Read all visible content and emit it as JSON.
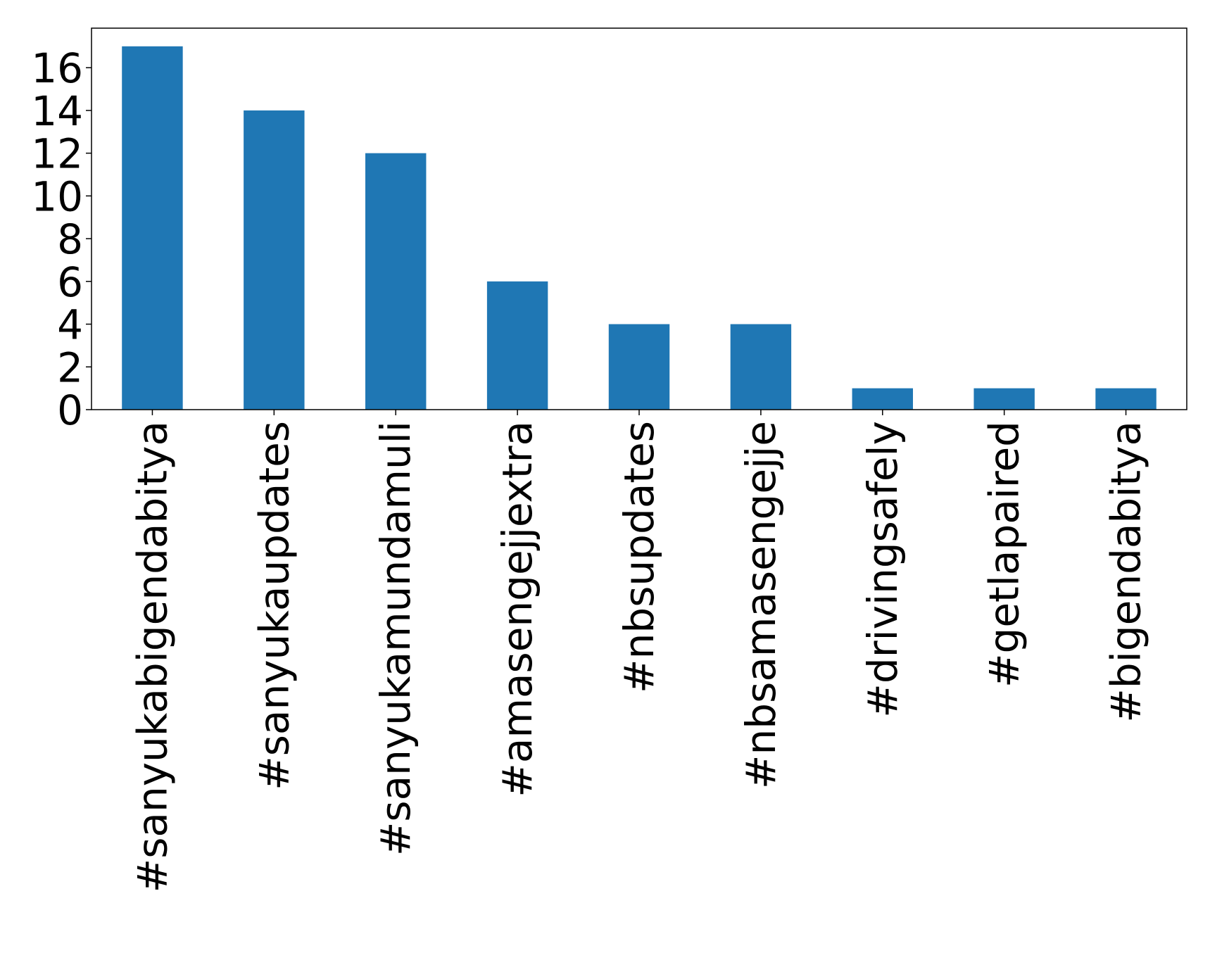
{
  "chart_data": {
    "type": "bar",
    "title": "",
    "xlabel": "",
    "ylabel": "",
    "categories": [
      "#sanyukabigendabitya",
      "#sanyukaupdates",
      "#sanyukamundamuli",
      "#amasengejjextra",
      "#nbsupdates",
      "#nbsamasengejje",
      "#drivingsafely",
      "#getlapaired",
      "#bigendabitya"
    ],
    "values": [
      17,
      14,
      12,
      6,
      4,
      4,
      1,
      1,
      1
    ],
    "ylim": [
      0,
      17.85
    ],
    "yticks": [
      0,
      2,
      4,
      6,
      8,
      10,
      12,
      14,
      16
    ],
    "grid": false,
    "legend": "none",
    "colors": {
      "bar": "#1f77b4",
      "axis": "#000000",
      "background": "#ffffff"
    }
  }
}
